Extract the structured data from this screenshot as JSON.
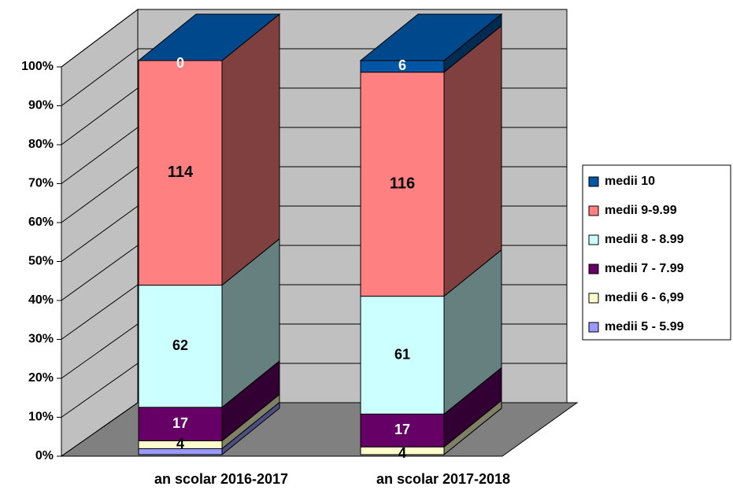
{
  "chart_data": {
    "type": "stacked_bar_3d_percent",
    "categories": [
      "an scolar 2016-2017",
      "an scolar 2017-2018"
    ],
    "series": [
      {
        "name": "medii 5 - 5.99",
        "color": "#9999ff",
        "values": [
          3,
          0
        ],
        "labels": false
      },
      {
        "name": "medii 6 - 6,99",
        "color": "#ffffcc",
        "values": [
          4,
          4
        ]
      },
      {
        "name": "medii 7 - 7.99",
        "color": "#660066",
        "values": [
          17,
          17
        ]
      },
      {
        "name": "medii 8 - 8.99",
        "color": "#ccffff",
        "values": [
          62,
          61
        ]
      },
      {
        "name": "medii 9-9.99",
        "color": "#ff8080",
        "values": [
          114,
          116
        ]
      },
      {
        "name": "medii 10",
        "color": "#0055a5",
        "values": [
          0,
          6
        ]
      }
    ],
    "ylim": [
      0,
      100
    ],
    "yticks": [
      {
        "value": 0,
        "label": "0%"
      },
      {
        "value": 10,
        "label": "10%"
      },
      {
        "value": 20,
        "label": "20%"
      },
      {
        "value": 30,
        "label": "30%"
      },
      {
        "value": 40,
        "label": "40%"
      },
      {
        "value": 50,
        "label": "50%"
      },
      {
        "value": 60,
        "label": "60%"
      },
      {
        "value": 70,
        "label": "70%"
      },
      {
        "value": 80,
        "label": "80%"
      },
      {
        "value": 90,
        "label": "90%"
      },
      {
        "value": 100,
        "label": "100%"
      }
    ],
    "grid": true,
    "legend": "right"
  }
}
